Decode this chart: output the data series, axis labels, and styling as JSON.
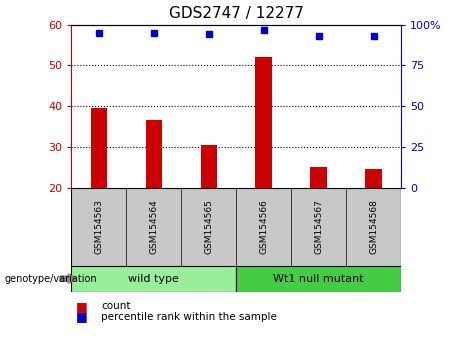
{
  "title": "GDS2747 / 12277",
  "samples": [
    "GSM154563",
    "GSM154564",
    "GSM154565",
    "GSM154566",
    "GSM154567",
    "GSM154568"
  ],
  "bar_values": [
    39.5,
    36.5,
    30.5,
    52.0,
    25.0,
    24.5
  ],
  "percentile_values": [
    95.0,
    95.0,
    94.5,
    96.5,
    93.0,
    93.0
  ],
  "y_min": 20,
  "y_max": 60,
  "y_ticks": [
    20,
    30,
    40,
    50,
    60
  ],
  "y_right_ticks": [
    0,
    25,
    50,
    75,
    100
  ],
  "y_right_labels": [
    "0",
    "25",
    "50",
    "75",
    "100%"
  ],
  "dotted_lines": [
    30,
    40,
    50
  ],
  "bar_color": "#cc0000",
  "dot_color": "#0000cc",
  "group1_label": "wild type",
  "group2_label": "Wt1 null mutant",
  "group1_color": "#99ee99",
  "group2_color": "#44cc44",
  "sample_bg_color": "#c8c8c8",
  "legend_count_label": "count",
  "legend_percentile_label": "percentile rank within the sample",
  "genotype_label": "genotype/variation"
}
